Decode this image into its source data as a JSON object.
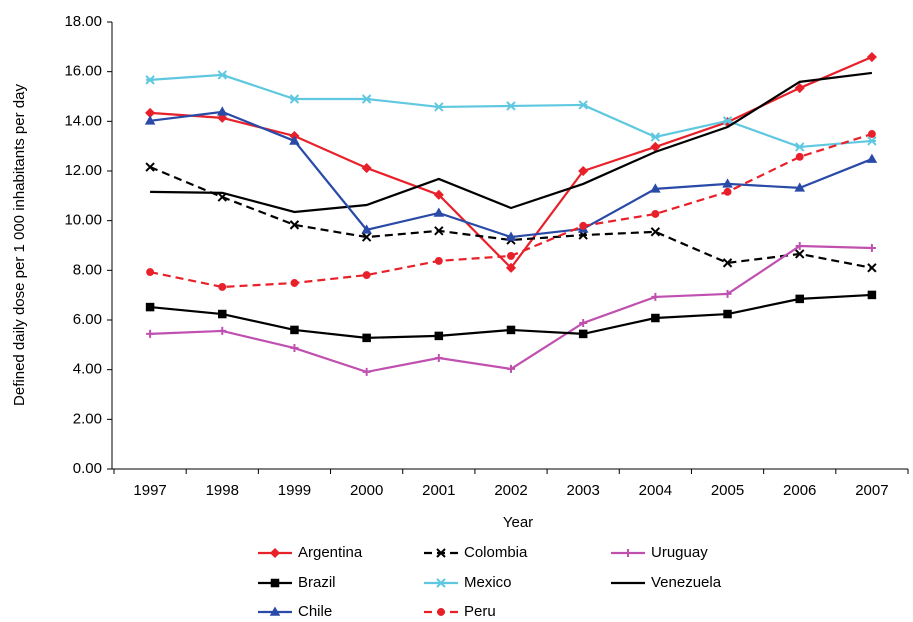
{
  "chart_data": {
    "type": "line",
    "x_label": "Year",
    "y_label": "Defined daily dose per 1 000 inhabitants per day",
    "categories": [
      "1997",
      "1998",
      "1999",
      "2000",
      "2001",
      "2002",
      "2003",
      "2004",
      "2005",
      "2006",
      "2007"
    ],
    "ylim": [
      0,
      18
    ],
    "yticks": [
      {
        "value": 0,
        "label": "0.00"
      },
      {
        "value": 2,
        "label": "2.00"
      },
      {
        "value": 4,
        "label": "4.00"
      },
      {
        "value": 6,
        "label": "6.00"
      },
      {
        "value": 8,
        "label": "8.00"
      },
      {
        "value": 10,
        "label": "10.00"
      },
      {
        "value": 12,
        "label": "12.00"
      },
      {
        "value": 14,
        "label": "14.00"
      },
      {
        "value": 16,
        "label": "16.00"
      },
      {
        "value": 18,
        "label": "18.00"
      }
    ],
    "legend": "bottom",
    "series": [
      {
        "name": "Argentina",
        "color": "#e8202a",
        "dash": false,
        "marker": "diamond",
        "values": [
          14.34,
          14.14,
          13.41,
          12.12,
          11.04,
          8.1,
          12.0,
          12.97,
          13.97,
          15.34,
          16.59
        ]
      },
      {
        "name": "Colombia",
        "color": "#000000",
        "dash": true,
        "marker": "x",
        "values": [
          12.16,
          10.95,
          9.83,
          9.34,
          9.59,
          9.22,
          9.42,
          9.55,
          8.3,
          8.66,
          8.1
        ]
      },
      {
        "name": "Uruguay",
        "color": "#c050b0",
        "dash": false,
        "marker": "plus",
        "values": [
          5.44,
          5.56,
          4.87,
          3.91,
          4.47,
          4.03,
          5.88,
          6.93,
          7.05,
          8.98,
          8.9
        ]
      },
      {
        "name": "Brazil",
        "color": "#000000",
        "dash": false,
        "marker": "square",
        "values": [
          6.52,
          6.24,
          5.6,
          5.28,
          5.36,
          5.6,
          5.44,
          6.08,
          6.24,
          6.85,
          7.01
        ]
      },
      {
        "name": "Mexico",
        "color": "#5fc8e0",
        "dash": false,
        "marker": "asterisk",
        "values": [
          15.67,
          15.87,
          14.9,
          14.9,
          14.58,
          14.62,
          14.66,
          13.37,
          14.02,
          12.97,
          13.21
        ]
      },
      {
        "name": "Venezuela",
        "color": "#000000",
        "dash": false,
        "marker": "none",
        "values": [
          11.16,
          11.12,
          10.35,
          10.63,
          11.68,
          10.51,
          11.48,
          12.77,
          13.77,
          15.59,
          15.95
        ]
      },
      {
        "name": "Chile",
        "color": "#2a4aa8",
        "dash": false,
        "marker": "triangle",
        "values": [
          14.02,
          14.38,
          13.21,
          9.63,
          10.31,
          9.34,
          9.67,
          11.28,
          11.48,
          11.32,
          12.48
        ]
      },
      {
        "name": "Peru",
        "color": "#e8202a",
        "dash": true,
        "marker": "circle",
        "values": [
          7.93,
          7.33,
          7.49,
          7.81,
          8.38,
          8.58,
          9.79,
          10.27,
          11.16,
          12.57,
          13.49
        ]
      }
    ]
  }
}
